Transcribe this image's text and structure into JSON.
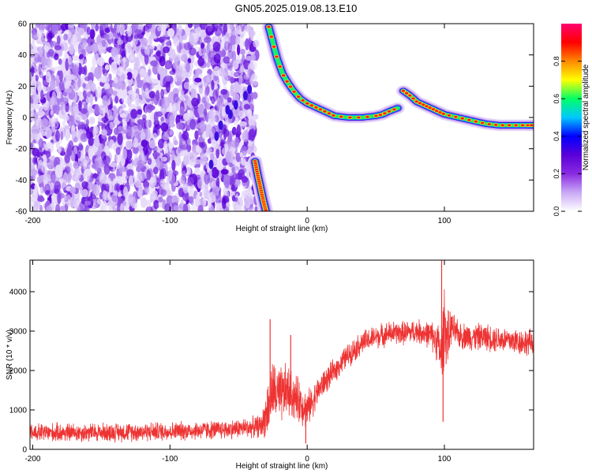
{
  "title": "GN05.2025.019.08.13.E10",
  "colorbar": {
    "label": "Normalized spectral amplitude",
    "ticks": [
      "0.0",
      "0.2",
      "0.4",
      "0.6",
      "0.8"
    ],
    "tick_values": [
      0.0,
      0.2,
      0.4,
      0.6,
      0.8
    ],
    "range": [
      0,
      1
    ]
  },
  "chart_data": [
    {
      "type": "heatmap",
      "title": "",
      "xlabel": "Height of straight line (km)",
      "ylabel": "Frequency (Hz)",
      "xlim": [
        -202,
        165
      ],
      "ylim": [
        -60,
        60
      ],
      "xticks": [
        -200,
        -100,
        0,
        100
      ],
      "yticks": [
        -60,
        -40,
        -20,
        0,
        20,
        40,
        60
      ],
      "ridge": {
        "segments": [
          {
            "x": [
              -38,
              -36,
              -34,
              -32,
              -30
            ],
            "y": [
              -28,
              -37,
              -45,
              -53,
              -60
            ]
          },
          {
            "x": [
              -28,
              -25,
              -22,
              -18,
              -14,
              -10,
              -5,
              0,
              5,
              10,
              15,
              20,
              30,
              40,
              50,
              55,
              60,
              66
            ],
            "y": [
              58,
              48,
              38,
              28,
              22,
              17,
              12,
              9,
              7,
              5,
              3,
              1,
              0,
              0,
              1,
              2,
              4,
              6
            ]
          },
          {
            "x": [
              70,
              75,
              80,
              85,
              90,
              95,
              100,
              110,
              120,
              130,
              140,
              150,
              160,
              165
            ],
            "y": [
              17,
              14,
              10,
              8,
              6,
              4,
              2,
              0,
              -2,
              -4,
              -5,
              -5,
              -5,
              -5
            ]
          }
        ]
      },
      "colorscale": [
        "#ffffff",
        "#c9a8f5",
        "#8a2be2",
        "#5a00d8",
        "#0000ff",
        "#00c8ff",
        "#00ff66",
        "#ffff00",
        "#ff8800",
        "#ff0000",
        "#ff0070"
      ]
    },
    {
      "type": "line",
      "title": "",
      "xlabel": "Height of straight line (km)",
      "ylabel": "SNR (10 * v/v)",
      "xlim": [
        -202,
        165
      ],
      "ylim": [
        0,
        4800
      ],
      "xticks": [
        -200,
        -100,
        0,
        100
      ],
      "yticks": [
        0,
        1000,
        2000,
        3000,
        4000
      ],
      "color": "#ee3333",
      "envelope": {
        "x": [
          -202,
          -150,
          -100,
          -60,
          -40,
          -33,
          -28,
          -25,
          -20,
          -15,
          -10,
          -5,
          0,
          5,
          10,
          20,
          30,
          40,
          50,
          60,
          70,
          80,
          90,
          95,
          98,
          100,
          102,
          105,
          110,
          120,
          130,
          140,
          150,
          165
        ],
        "mean": [
          420,
          430,
          460,
          500,
          560,
          600,
          1100,
          1500,
          1300,
          1500,
          1350,
          1200,
          1000,
          1300,
          1600,
          2000,
          2400,
          2700,
          2850,
          2950,
          2950,
          3000,
          2900,
          2750,
          2300,
          3300,
          2700,
          3100,
          2900,
          2850,
          2850,
          2800,
          2750,
          2700
        ],
        "spread": [
          280,
          280,
          280,
          280,
          300,
          350,
          900,
          900,
          900,
          800,
          700,
          650,
          550,
          450,
          400,
          350,
          350,
          350,
          350,
          350,
          350,
          350,
          400,
          600,
          900,
          1200,
          900,
          500,
          400,
          400,
          400,
          400,
          400,
          400
        ]
      },
      "spikes": [
        {
          "x": -27,
          "y": 3300
        },
        {
          "x": -12,
          "y": 2900
        },
        {
          "x": -1,
          "y": 150
        },
        {
          "x": 98,
          "y": 4800
        },
        {
          "x": 99,
          "y": 700
        }
      ]
    }
  ]
}
